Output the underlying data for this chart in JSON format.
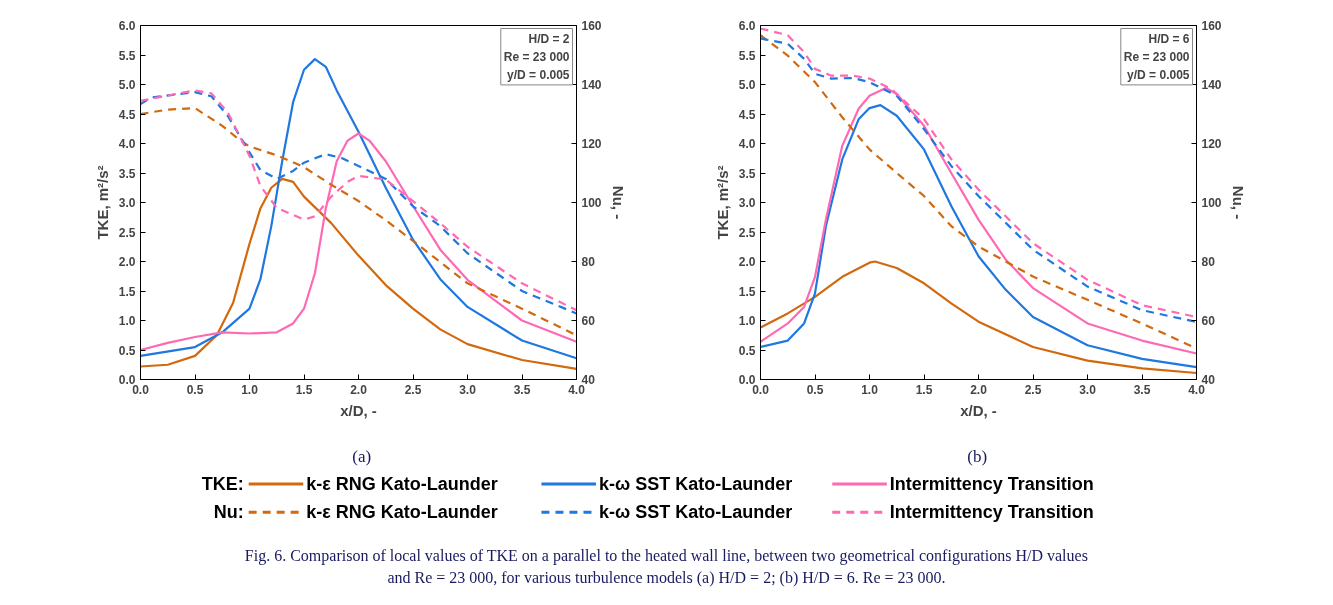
{
  "chart_data": [
    {
      "type": "line",
      "xlabel": "x/D, -",
      "ylabel": "TKE, m²/s²",
      "y2label": "Nu, -",
      "xlim": [
        0,
        4
      ],
      "ylim": [
        0,
        6
      ],
      "y2lim": [
        40,
        160
      ],
      "xticks": [
        {
          "value": 0,
          "label": "0.0"
        },
        {
          "value": 0.5,
          "label": "0.5"
        },
        {
          "value": 1,
          "label": "1.0"
        },
        {
          "value": 1.5,
          "label": "1.5"
        },
        {
          "value": 2,
          "label": "2.0"
        },
        {
          "value": 2.5,
          "label": "2.5"
        },
        {
          "value": 3,
          "label": "3.0"
        },
        {
          "value": 3.5,
          "label": "3.5"
        },
        {
          "value": 4,
          "label": "4.0"
        }
      ],
      "yticks": [
        {
          "value": 0,
          "label": "0.0"
        },
        {
          "value": 0.5,
          "label": "0.5"
        },
        {
          "value": 1,
          "label": "1.0"
        },
        {
          "value": 1.5,
          "label": "1.5"
        },
        {
          "value": 2,
          "label": "2.0"
        },
        {
          "value": 2.5,
          "label": "2.5"
        },
        {
          "value": 3,
          "label": "3.0"
        },
        {
          "value": 3.5,
          "label": "3.5"
        },
        {
          "value": 4,
          "label": "4.0"
        },
        {
          "value": 4.5,
          "label": "4.5"
        },
        {
          "value": 5,
          "label": "5.0"
        },
        {
          "value": 5.5,
          "label": "5.5"
        },
        {
          "value": 6,
          "label": "6.0"
        }
      ],
      "y2ticks": [
        40,
        60,
        80,
        100,
        120,
        140,
        160
      ],
      "grid": false,
      "marker": "none",
      "annotations": [
        "H/D = 2\nRe = 23 000\ny/D = 0.005",
        "(a)"
      ],
      "series": [
        {
          "color": "#d2690e",
          "line_style": "solid",
          "x": [
            0,
            0.25,
            0.5,
            0.7,
            0.85,
            1.0,
            1.1,
            1.2,
            1.3,
            1.4,
            1.5,
            1.75,
            2.0,
            2.25,
            2.5,
            2.75,
            3.0,
            3.5,
            4.0
          ],
          "values": [
            0.22,
            0.25,
            0.4,
            0.75,
            1.3,
            2.3,
            2.9,
            3.25,
            3.4,
            3.35,
            3.1,
            2.65,
            2.1,
            1.6,
            1.2,
            0.85,
            0.6,
            0.33,
            0.18
          ]
        },
        {
          "color": "#1f77e0",
          "line_style": "solid",
          "x": [
            0,
            0.5,
            0.75,
            1.0,
            1.1,
            1.2,
            1.3,
            1.4,
            1.5,
            1.6,
            1.7,
            1.8,
            2.0,
            2.25,
            2.5,
            2.75,
            3.0,
            3.5,
            4.0
          ],
          "values": [
            0.4,
            0.55,
            0.8,
            1.2,
            1.7,
            2.6,
            3.7,
            4.7,
            5.25,
            5.43,
            5.3,
            4.9,
            4.2,
            3.25,
            2.37,
            1.7,
            1.23,
            0.66,
            0.36
          ]
        },
        {
          "color": "#ff69b4",
          "line_style": "solid",
          "x": [
            0,
            0.25,
            0.5,
            0.75,
            1.0,
            1.25,
            1.4,
            1.5,
            1.6,
            1.7,
            1.8,
            1.9,
            2.0,
            2.1,
            2.25,
            2.5,
            2.75,
            3.0,
            3.5,
            4.0
          ],
          "values": [
            0.5,
            0.62,
            0.72,
            0.8,
            0.78,
            0.8,
            0.95,
            1.2,
            1.8,
            2.9,
            3.7,
            4.05,
            4.17,
            4.05,
            3.7,
            2.94,
            2.2,
            1.69,
            1.0,
            0.64
          ]
        },
        {
          "color": "#d2690e",
          "line_style": "dashed",
          "axis": "y2",
          "x": [
            0,
            0.25,
            0.5,
            0.75,
            0.9,
            1.0,
            1.25,
            1.5,
            1.75,
            2.0,
            2.25,
            2.5,
            3.0,
            3.5,
            4.0
          ],
          "values": [
            130,
            131.5,
            132,
            126,
            121.5,
            119,
            116,
            112,
            106,
            100.5,
            94,
            87,
            72.6,
            64,
            55
          ]
        },
        {
          "color": "#1f77e0",
          "line_style": "dashed",
          "axis": "y2",
          "x": [
            0,
            0.1,
            0.5,
            0.65,
            0.8,
            1.0,
            1.1,
            1.25,
            1.4,
            1.5,
            1.7,
            1.85,
            2.0,
            2.25,
            2.5,
            2.75,
            3.0,
            3.5,
            4.0
          ],
          "values": [
            133.4,
            135.6,
            137.4,
            136,
            129.4,
            117,
            111,
            108,
            110.7,
            113.5,
            116.4,
            115,
            112.4,
            108,
            98.7,
            92,
            82.8,
            70,
            62.4
          ]
        },
        {
          "color": "#ff69b4",
          "line_style": "dashed",
          "axis": "y2",
          "x": [
            0,
            0.5,
            0.65,
            0.8,
            1.0,
            1.1,
            1.25,
            1.5,
            1.6,
            1.75,
            1.9,
            2.0,
            2.25,
            2.5,
            2.75,
            3.0,
            3.5,
            4.0
          ],
          "values": [
            134.5,
            138,
            137,
            130.6,
            115.8,
            105.6,
            98.2,
            94.2,
            95.3,
            102,
            107,
            109,
            107.8,
            100.5,
            93,
            85,
            72.6,
            63.5
          ]
        }
      ]
    },
    {
      "type": "line",
      "xlabel": "x/D, -",
      "ylabel": "TKE, m²/s²",
      "y2label": "Nu, -",
      "xlim": [
        0,
        4
      ],
      "ylim": [
        0,
        6
      ],
      "y2lim": [
        40,
        160
      ],
      "xticks": [
        {
          "value": 0,
          "label": "0.0"
        },
        {
          "value": 0.5,
          "label": "0.5"
        },
        {
          "value": 1,
          "label": "1.0"
        },
        {
          "value": 1.5,
          "label": "1.5"
        },
        {
          "value": 2,
          "label": "2.0"
        },
        {
          "value": 2.5,
          "label": "2.5"
        },
        {
          "value": 3,
          "label": "3.0"
        },
        {
          "value": 3.5,
          "label": "3.5"
        },
        {
          "value": 4,
          "label": "4.0"
        }
      ],
      "yticks": [
        {
          "value": 0,
          "label": "0.0"
        },
        {
          "value": 0.5,
          "label": "0.5"
        },
        {
          "value": 1,
          "label": "1.0"
        },
        {
          "value": 1.5,
          "label": "1.5"
        },
        {
          "value": 2,
          "label": "2.0"
        },
        {
          "value": 2.5,
          "label": "2.5"
        },
        {
          "value": 3,
          "label": "3.0"
        },
        {
          "value": 3.5,
          "label": "3.5"
        },
        {
          "value": 4,
          "label": "4.0"
        },
        {
          "value": 4.5,
          "label": "4.5"
        },
        {
          "value": 5,
          "label": "5.0"
        },
        {
          "value": 5.5,
          "label": "5.5"
        },
        {
          "value": 6,
          "label": "6.0"
        }
      ],
      "y2ticks": [
        40,
        60,
        80,
        100,
        120,
        140,
        160
      ],
      "grid": false,
      "legend": "bottom",
      "marker": "none",
      "annotations": [
        "H/D = 6\nRe = 23 000\ny/D = 0.005",
        "(b)",
        "TKE:",
        "Nu:",
        "Fig. 6. Comparison of local values of TKE on a parallel to the heated wall line, between two geometrical configurations H/D values",
        "and Re = 23 000, for various turbulence models (a) H/D = 2; (b) H/D = 6. Re = 23 000."
      ],
      "series": [
        {
          "name": "k-ε RNG Kato-Launder",
          "color": "#d2690e",
          "line_style": "solid",
          "x": [
            0,
            0.25,
            0.5,
            0.75,
            1.0,
            1.05,
            1.25,
            1.5,
            1.75,
            2.0,
            2.5,
            3.0,
            3.5,
            4.0
          ],
          "values": [
            0.88,
            1.12,
            1.4,
            1.74,
            1.98,
            2.0,
            1.89,
            1.63,
            1.29,
            0.98,
            0.55,
            0.32,
            0.19,
            0.11
          ]
        },
        {
          "name": "k-ω SST Kato-Launder",
          "color": "#1f77e0",
          "line_style": "solid",
          "x": [
            0,
            0.25,
            0.4,
            0.5,
            0.6,
            0.75,
            0.9,
            1.0,
            1.1,
            1.25,
            1.5,
            1.75,
            2.0,
            2.25,
            2.5,
            3.0,
            3.5,
            4.0
          ],
          "values": [
            0.55,
            0.66,
            0.95,
            1.46,
            2.6,
            3.73,
            4.41,
            4.6,
            4.65,
            4.47,
            3.9,
            2.94,
            2.09,
            1.52,
            1.06,
            0.58,
            0.35,
            0.21
          ]
        },
        {
          "name": "Intermittency Transition",
          "color": "#ff69b4",
          "line_style": "solid",
          "x": [
            0,
            0.25,
            0.4,
            0.5,
            0.6,
            0.75,
            0.9,
            1.0,
            1.15,
            1.25,
            1.5,
            1.75,
            2.0,
            2.25,
            2.5,
            3.0,
            3.5,
            4.0
          ],
          "values": [
            0.64,
            0.95,
            1.23,
            1.74,
            2.71,
            3.96,
            4.59,
            4.81,
            4.94,
            4.84,
            4.3,
            3.5,
            2.71,
            2.03,
            1.55,
            0.95,
            0.66,
            0.44
          ]
        },
        {
          "name": "k-ε RNG Kato-Launder",
          "color": "#d2690e",
          "line_style": "dashed",
          "axis": "y2",
          "x": [
            0,
            0.25,
            0.5,
            0.75,
            1.0,
            1.25,
            1.5,
            1.75,
            2.0,
            2.5,
            3.0,
            3.5,
            4.0
          ],
          "values": [
            156.7,
            149.8,
            140.8,
            128.9,
            118,
            110,
            102.2,
            92,
            85.1,
            74.9,
            67,
            59,
            50.5
          ]
        },
        {
          "name": "k-ω SST Kato-Launder",
          "color": "#1f77e0",
          "line_style": "dashed",
          "axis": "y2",
          "x": [
            0,
            0.25,
            0.4,
            0.5,
            0.65,
            0.85,
            1.0,
            1.25,
            1.5,
            1.75,
            2.0,
            2.5,
            3.0,
            3.5,
            4.0
          ],
          "values": [
            155.6,
            153.8,
            148.7,
            143.6,
            142,
            142.2,
            140.8,
            136.2,
            124.9,
            112.4,
            102.2,
            84,
            71.5,
            63.5,
            59.5
          ]
        },
        {
          "name": "Intermittency Transition",
          "color": "#ff69b4",
          "line_style": "dashed",
          "axis": "y2",
          "x": [
            0,
            0.25,
            0.4,
            0.5,
            0.65,
            0.85,
            1.0,
            1.2,
            1.5,
            1.75,
            2.0,
            2.5,
            3.0,
            3.5,
            4.0
          ],
          "values": [
            159,
            156.7,
            151,
            145.3,
            143,
            143,
            142,
            138.5,
            128.3,
            114.7,
            104.4,
            86.2,
            73.8,
            65.2,
            61.2
          ]
        }
      ]
    }
  ]
}
